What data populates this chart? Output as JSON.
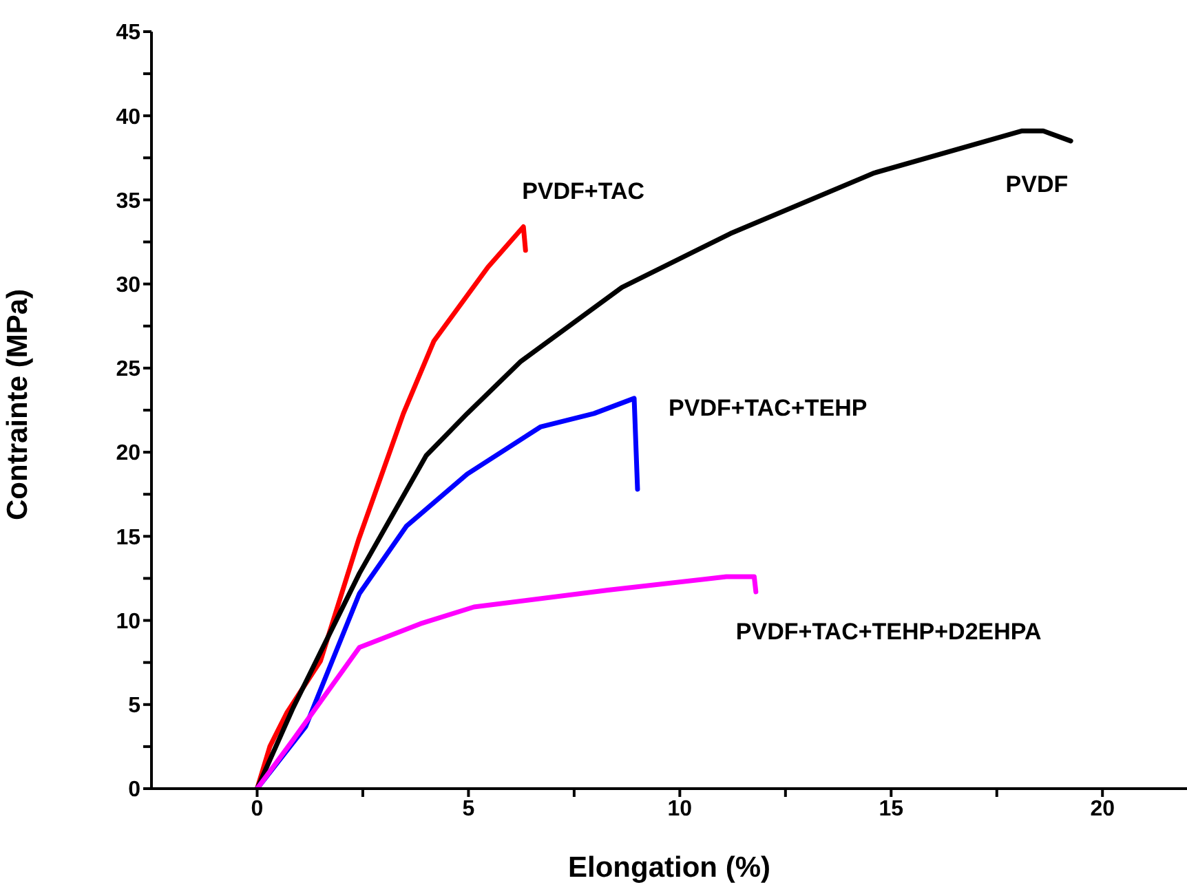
{
  "chart_data": {
    "type": "line",
    "xlabel": "Elongation (%)",
    "ylabel": "Contrainte (MPa)",
    "xlim": [
      -2.5,
      22
    ],
    "xticks": [
      0,
      {
        "value": 2.5,
        "label": null
      },
      5,
      {
        "value": 7.5,
        "label": null
      },
      10,
      {
        "value": 12.5,
        "label": null
      },
      15,
      {
        "value": 17.5,
        "label": null
      },
      20
    ],
    "ylim": [
      0,
      45
    ],
    "yticks": [
      0,
      {
        "value": 2.5,
        "label": null
      },
      5,
      {
        "value": 7.5,
        "label": null
      },
      10,
      {
        "value": 12.5,
        "label": null
      },
      15,
      {
        "value": 17.5,
        "label": null
      },
      20,
      {
        "value": 22.5,
        "label": null
      },
      25,
      {
        "value": 27.5,
        "label": null
      },
      30,
      {
        "value": 32.5,
        "label": null
      },
      35,
      {
        "value": 37.5,
        "label": null
      },
      40,
      {
        "value": 42.5,
        "label": null
      },
      45
    ],
    "grid": false,
    "legend": false,
    "marker": "none",
    "line_style": "solid",
    "series": [
      {
        "name": "PVDF+TAC",
        "color": "#ff0000",
        "x": [
          0,
          0.3,
          0.7,
          1.5,
          2.4,
          3.46,
          4.18,
          5.46,
          6.3,
          6.35
        ],
        "values": [
          0,
          2.5,
          4.5,
          7.6,
          14.8,
          22.3,
          26.6,
          31.0,
          33.4,
          32.0
        ]
      },
      {
        "name": "PVDF",
        "color": "#000000",
        "x": [
          0,
          0.85,
          2.42,
          4.0,
          4.97,
          6.24,
          8.63,
          11.2,
          14.6,
          18.1,
          18.6,
          19.25
        ],
        "values": [
          0,
          4.8,
          12.8,
          19.8,
          22.3,
          25.4,
          29.8,
          33.0,
          36.6,
          39.1,
          39.1,
          38.5
        ]
      },
      {
        "name": "PVDF+TAC+TEHP",
        "color": "#0000ff",
        "x": [
          0,
          1.15,
          2.42,
          3.53,
          4.97,
          6.7,
          7.97,
          8.92,
          9.0
        ],
        "values": [
          0,
          3.7,
          11.6,
          15.6,
          18.7,
          21.5,
          22.3,
          23.2,
          17.8
        ]
      },
      {
        "name": "PVDF+TAC+TEHP+D2EHPA",
        "color": "#ff00ff",
        "x": [
          0,
          0.85,
          2.42,
          3.86,
          5.13,
          8.3,
          11.1,
          11.76,
          11.8
        ],
        "values": [
          0,
          2.9,
          8.4,
          9.8,
          10.8,
          11.8,
          12.6,
          12.6,
          11.7
        ]
      }
    ]
  }
}
